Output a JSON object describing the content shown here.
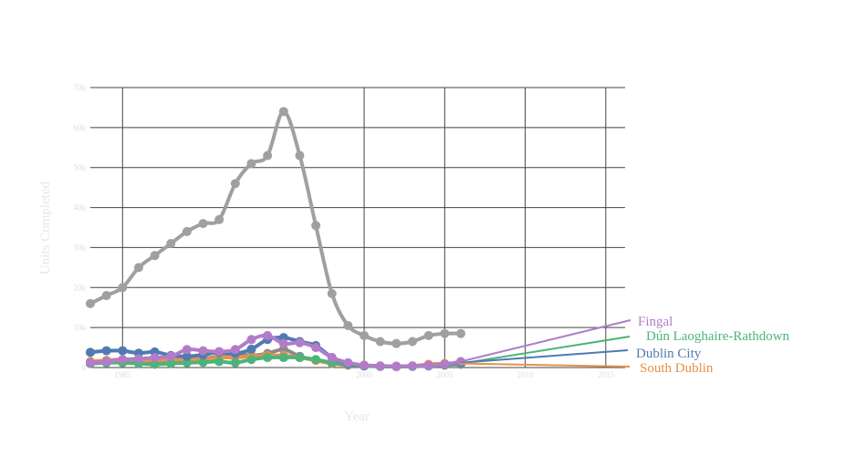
{
  "chart_data": {
    "type": "line",
    "title": "",
    "xlabel": "Year",
    "ylabel": "Units Completed",
    "xlim": [
      1983,
      2016.2
    ],
    "ylim": [
      0,
      70000
    ],
    "grid": true,
    "x_ticks": [
      {
        "value": 1985,
        "label": "1985"
      },
      {
        "value": 2000,
        "label": "2000"
      },
      {
        "value": 2005,
        "label": "2005"
      },
      {
        "value": 2010,
        "label": "2010"
      },
      {
        "value": 2015,
        "label": "2015"
      }
    ],
    "y_ticks": [
      {
        "value": 0,
        "label": "0"
      },
      {
        "value": 10000,
        "label": "10k"
      },
      {
        "value": 20000,
        "label": "20k"
      },
      {
        "value": 30000,
        "label": "30k"
      },
      {
        "value": 40000,
        "label": "40k"
      },
      {
        "value": 50000,
        "label": "50k"
      },
      {
        "value": 60000,
        "label": "60k"
      },
      {
        "value": 70000,
        "label": "70k"
      }
    ],
    "x": [
      1983,
      1984,
      1985,
      1986,
      1987,
      1988,
      1989,
      1990,
      1991,
      1992,
      1993,
      1994,
      1995,
      1996,
      1997,
      1998,
      1999,
      2000,
      2001,
      2002,
      2003,
      2004,
      2005,
      2006
    ],
    "series": [
      {
        "name": "",
        "color": "#a0a0a0",
        "end_label": "",
        "values": [
          16000,
          18000,
          20000,
          25000,
          28000,
          31000,
          34000,
          36000,
          37000,
          46000,
          51000,
          53000,
          64000,
          53000,
          35500,
          18500,
          10500,
          8000,
          6500,
          6000,
          6500,
          8000,
          8500,
          8500
        ]
      },
      {
        "name": "Fingal",
        "color": "#b27cc8",
        "end_label": "Fingal",
        "values": [
          1200,
          1500,
          2000,
          2200,
          2500,
          2800,
          4500,
          4200,
          4000,
          4500,
          7000,
          8000,
          6000,
          6200,
          5000,
          2500,
          1200,
          600,
          400,
          300,
          400,
          500,
          800,
          1500
        ]
      },
      {
        "name": "Dún Laoghaire-Rathdown",
        "color": "#4db37a",
        "end_label": "Dún Laoghaire-Rathdown",
        "values": [
          1000,
          1200,
          1200,
          1000,
          800,
          1000,
          1200,
          1300,
          1500,
          1200,
          2000,
          2500,
          2500,
          2500,
          2000,
          1200,
          700,
          400,
          300,
          200,
          300,
          400,
          600,
          1000
        ]
      },
      {
        "name": "Dublin City",
        "color": "#4f7bb0",
        "end_label": "Dublin City",
        "values": [
          3800,
          4200,
          4200,
          3600,
          3900,
          3000,
          2800,
          3200,
          3800,
          3500,
          4600,
          7000,
          7500,
          6500,
          5500,
          2500,
          1000,
          500,
          400,
          300,
          400,
          500,
          800,
          1200
        ]
      },
      {
        "name": "South Dublin",
        "color": "#e8914a",
        "end_label": "South Dublin",
        "values": [
          1500,
          1800,
          2000,
          1800,
          1800,
          2000,
          2000,
          2000,
          2500,
          2500,
          2800,
          3000,
          3000,
          2500,
          1800,
          1000,
          600,
          400,
          300,
          300,
          400,
          800,
          1000,
          1000
        ]
      },
      {
        "name": "",
        "color": "#8a8a8a",
        "end_label": "",
        "values": [
          1000,
          1200,
          1300,
          1500,
          1700,
          1700,
          2000,
          2200,
          2800,
          3500,
          3000,
          3500,
          4500,
          2800,
          1800,
          1000,
          600,
          400,
          300,
          300,
          300,
          400,
          600,
          800
        ]
      }
    ]
  }
}
